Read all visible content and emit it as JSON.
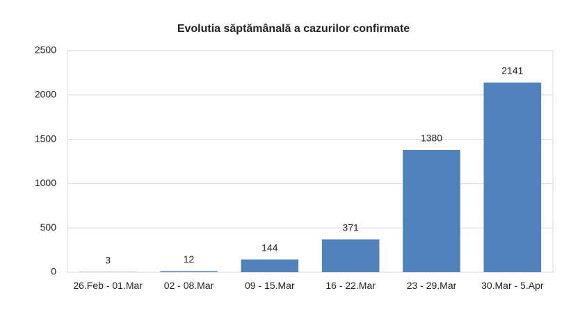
{
  "chart_data": {
    "type": "bar",
    "title": "Evolutia săptămânală a cazurilor confirmate",
    "categories": [
      "26.Feb - 01.Mar",
      "02 - 08.Mar",
      "09 - 15.Mar",
      "16 - 22.Mar",
      "23 - 29.Mar",
      "30.Mar - 5.Apr"
    ],
    "values": [
      3,
      12,
      144,
      371,
      1380,
      2141
    ],
    "color": "#4f81bd",
    "ylim": [
      0,
      2500
    ],
    "yticks": [
      0,
      500,
      1000,
      1500,
      2000,
      2500
    ],
    "grid": true
  }
}
